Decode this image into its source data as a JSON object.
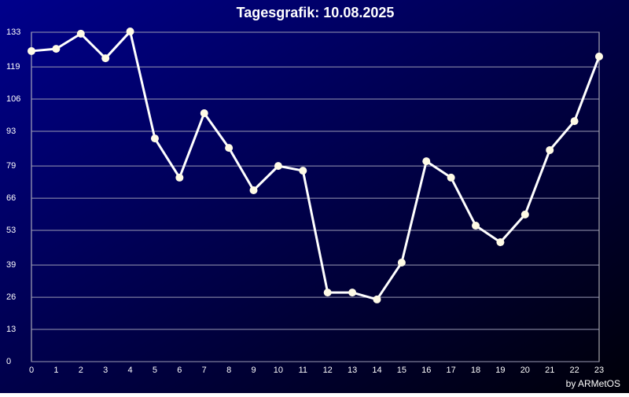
{
  "chart_data": {
    "type": "line",
    "title": "Tagesgrafik: 10.08.2025",
    "footer": "by ARMetOS",
    "categories": [
      "0",
      "1",
      "2",
      "3",
      "4",
      "5",
      "6",
      "7",
      "8",
      "9",
      "10",
      "11",
      "12",
      "13",
      "14",
      "15",
      "16",
      "17",
      "18",
      "19",
      "20",
      "21",
      "22",
      "23"
    ],
    "values": [
      125.4,
      126.3,
      132.4,
      122.5,
      133.3,
      90.1,
      74.3,
      100.3,
      86.3,
      69.2,
      79.0,
      77.1,
      27.9,
      27.9,
      25.1,
      40.0,
      80.9,
      74.3,
      54.9,
      48.2,
      59.4,
      85.4,
      97.1,
      123.2
    ],
    "color": "#ffffff",
    "ylim": [
      0,
      133
    ],
    "yticks": [
      0,
      13,
      26,
      39,
      53,
      66,
      79,
      93,
      106,
      119,
      133
    ],
    "grid": true
  }
}
